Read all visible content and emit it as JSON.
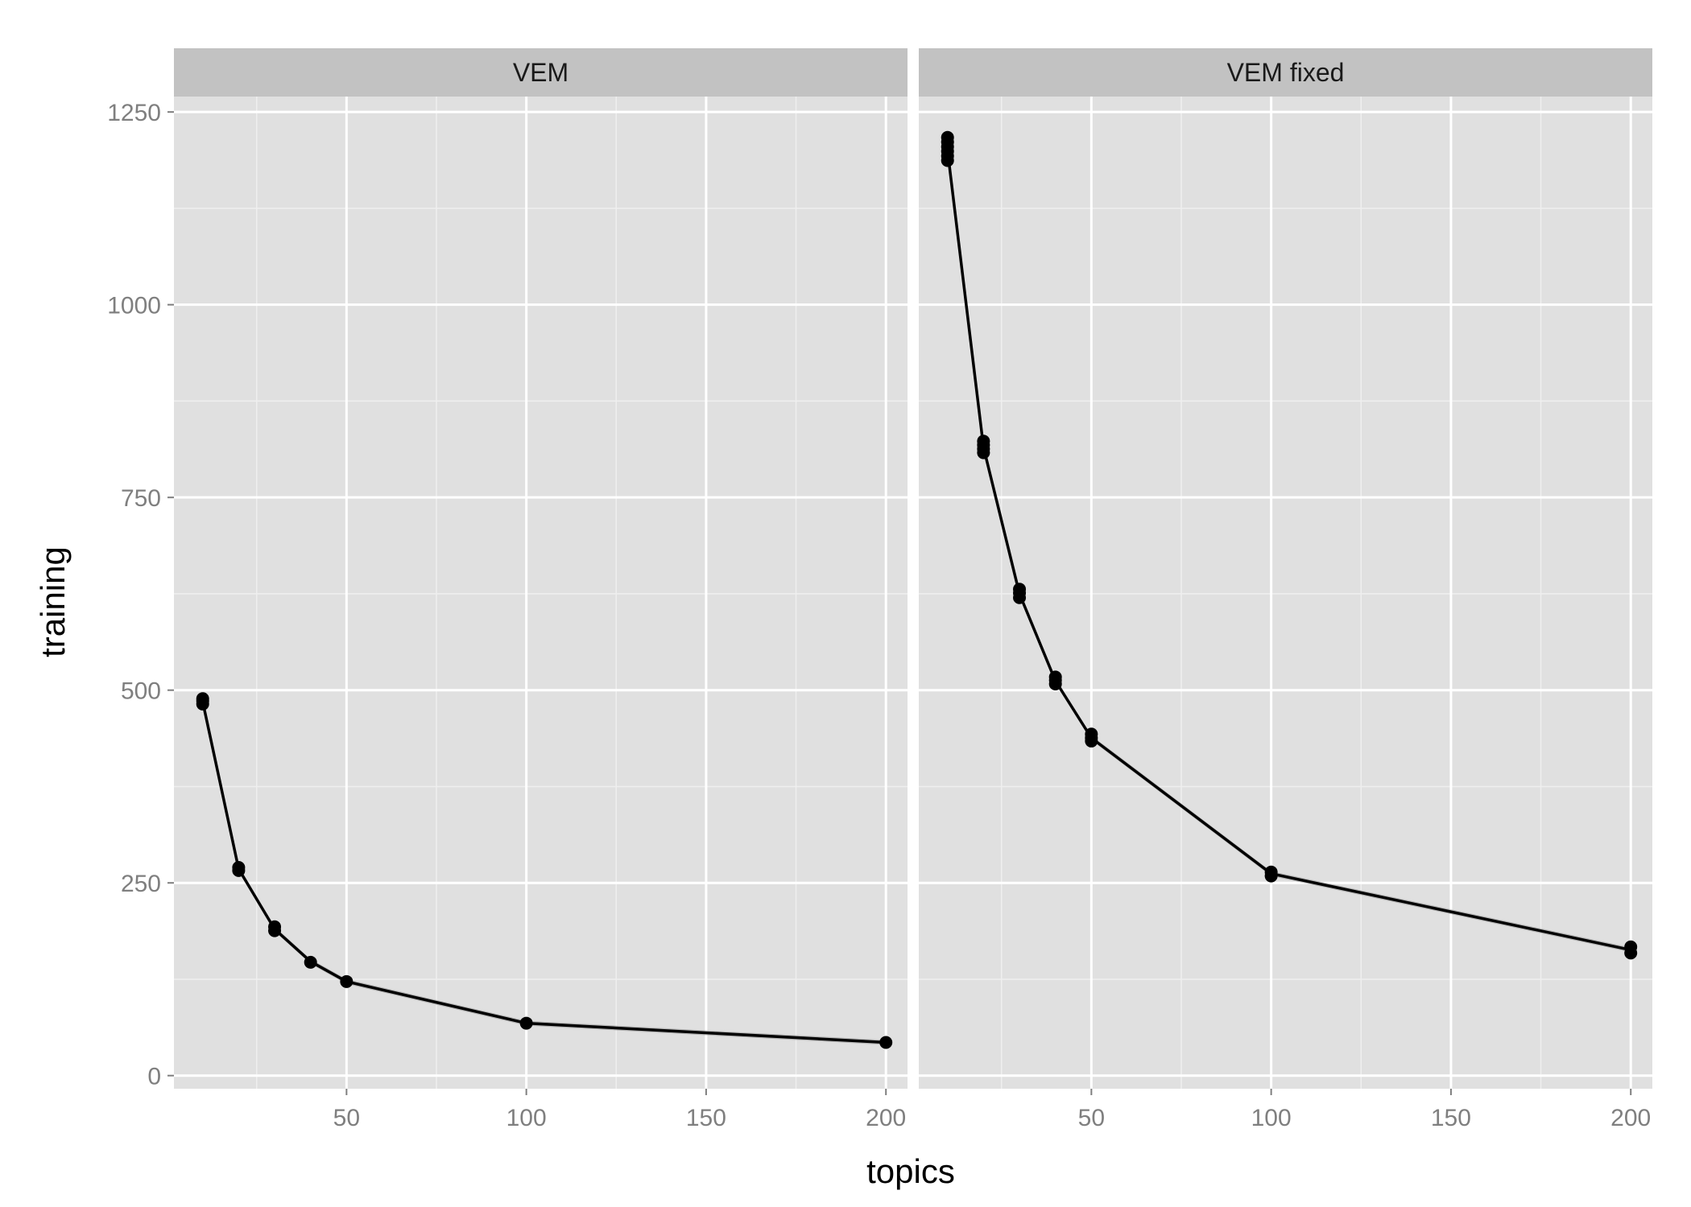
{
  "chart_data": {
    "type": "line",
    "xlabel": "topics",
    "ylabel": "training",
    "xlim": [
      2,
      206
    ],
    "ylim": [
      -17,
      1270
    ],
    "x_ticks": [
      50,
      100,
      150,
      200
    ],
    "y_ticks": [
      0,
      250,
      500,
      750,
      1000,
      1250
    ],
    "x_tick_labels": [
      "50",
      "100",
      "150",
      "200"
    ],
    "y_tick_labels": [
      "0",
      "250",
      "500",
      "750",
      "1000",
      "1250"
    ],
    "grid": true,
    "legend": "none",
    "panels": [
      {
        "strip": "VEM",
        "x": [
          10,
          20,
          30,
          40,
          50,
          100,
          200
        ],
        "y": [
          485,
          268,
          190,
          148,
          122,
          68,
          43
        ],
        "points": [
          [
            10,
            482
          ],
          [
            10,
            486
          ],
          [
            10,
            489
          ],
          [
            20,
            266
          ],
          [
            20,
            270
          ],
          [
            30,
            188
          ],
          [
            30,
            193
          ],
          [
            40,
            147
          ],
          [
            50,
            122
          ],
          [
            100,
            68
          ],
          [
            200,
            43
          ]
        ]
      },
      {
        "strip": "VEM fixed",
        "x": [
          10,
          20,
          30,
          40,
          50,
          100,
          200
        ],
        "y": [
          1200,
          815,
          625,
          512,
          438,
          262,
          163
        ],
        "points": [
          [
            10,
            1187
          ],
          [
            10,
            1193
          ],
          [
            10,
            1199
          ],
          [
            10,
            1205
          ],
          [
            10,
            1211
          ],
          [
            10,
            1217
          ],
          [
            20,
            808
          ],
          [
            20,
            813
          ],
          [
            20,
            818
          ],
          [
            20,
            823
          ],
          [
            30,
            620
          ],
          [
            30,
            626
          ],
          [
            30,
            631
          ],
          [
            40,
            508
          ],
          [
            40,
            513
          ],
          [
            40,
            517
          ],
          [
            50,
            434
          ],
          [
            50,
            438
          ],
          [
            50,
            443
          ],
          [
            100,
            259
          ],
          [
            100,
            264
          ],
          [
            200,
            159
          ],
          [
            200,
            167
          ]
        ]
      }
    ]
  },
  "colors": {
    "panel_bg": "#e0e0e0",
    "strip_bg": "#c2c2c2",
    "major_grid": "#ffffff",
    "minor_grid": "#efefef",
    "line": "#000000",
    "band": "#666666"
  }
}
